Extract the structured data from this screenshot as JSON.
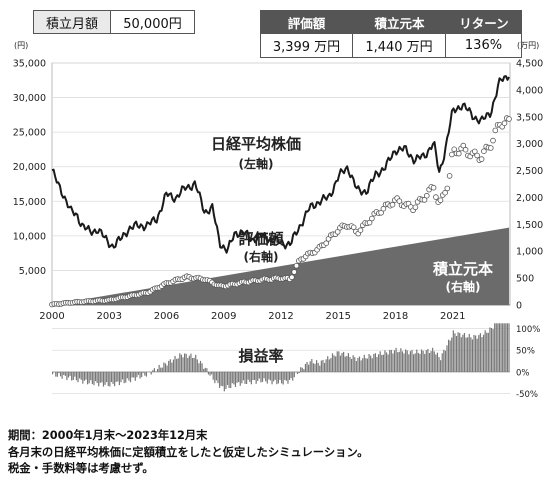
{
  "summary": {
    "monthly_label": "積立月額",
    "monthly_value": "50,000円",
    "headers": [
      "評価額",
      "積立元本",
      "リターン"
    ],
    "values": [
      "3,399 万円",
      "1,440 万円",
      "136%"
    ]
  },
  "notes": [
    "期間：2000年1月末〜2023年12月末",
    "各月末の日経平均株価に定額積立をしたと仮定したシミュレーション。",
    "税金・手数料等は考慮せず。"
  ],
  "chart_data": {
    "type": "line",
    "left_unit": "(円)",
    "right_unit": "(万円)",
    "left_ticks": [
      "35,000",
      "30,000",
      "25,000",
      "20,000",
      "15,000",
      "10,000",
      "5,000"
    ],
    "left_tick_values": [
      35000,
      30000,
      25000,
      20000,
      15000,
      10000,
      5000
    ],
    "right_ticks": [
      "4,500",
      "4,000",
      "3,500",
      "3,000",
      "2,500",
      "2,000",
      "1,500",
      "1,000",
      "500",
      "0"
    ],
    "right_tick_values": [
      4500,
      4000,
      3500,
      3000,
      2500,
      2000,
      1500,
      1000,
      500,
      0
    ],
    "x_ticks": [
      "2000",
      "2003",
      "2006",
      "2009",
      "2012",
      "2015",
      "2018",
      "2021"
    ],
    "x_tick_values": [
      2000,
      2003,
      2006,
      2009,
      2012,
      2015,
      2018,
      2021
    ],
    "left_ylim": [
      0,
      35000
    ],
    "right_ylim": [
      0,
      4500
    ],
    "xlim": [
      2000,
      2024
    ],
    "ror_ticks": [
      "100%",
      "50%",
      "0%",
      "-50%"
    ],
    "ror_tick_values": [
      100,
      50,
      0,
      -50
    ],
    "ror_ylim": [
      -60,
      115
    ],
    "series": [
      {
        "name": "日経平均株価",
        "sublabel": "(左軸)",
        "axis": "left",
        "x": [
          2000,
          2000.3,
          2000.6,
          2001,
          2001.3,
          2001.6,
          2002,
          2002.4,
          2002.8,
          2003.2,
          2003.6,
          2004,
          2004.5,
          2005,
          2005.5,
          2006,
          2006.5,
          2007,
          2007.5,
          2008,
          2008.4,
          2008.8,
          2009.2,
          2009.6,
          2010,
          2010.5,
          2011,
          2011.5,
          2012,
          2012.5,
          2013,
          2013.5,
          2014,
          2014.5,
          2015,
          2015.5,
          2016,
          2016.5,
          2017,
          2017.5,
          2018,
          2018.5,
          2019,
          2019.5,
          2020,
          2020.3,
          2020.6,
          2021,
          2021.5,
          2022,
          2022.5,
          2023,
          2023.5,
          2023.95
        ],
        "y": [
          19500,
          17500,
          16000,
          13500,
          13000,
          11500,
          10500,
          11000,
          9500,
          8500,
          9500,
          11000,
          11500,
          11500,
          12500,
          16000,
          15500,
          17000,
          17500,
          13500,
          14000,
          9000,
          7800,
          10500,
          10500,
          9500,
          10000,
          9500,
          9000,
          8800,
          11500,
          14000,
          15000,
          15500,
          18500,
          20000,
          16500,
          16500,
          19000,
          20000,
          22500,
          22500,
          21000,
          21500,
          23500,
          19000,
          22500,
          28000,
          29000,
          27500,
          26500,
          28000,
          32500,
          33400
        ]
      },
      {
        "name": "評価額",
        "sublabel": "(右軸)",
        "axis": "right",
        "x": [
          2000,
          2001,
          2002,
          2003,
          2004,
          2005,
          2006,
          2007,
          2008,
          2008.8,
          2009.3,
          2010,
          2011,
          2012,
          2012.5,
          2013,
          2014,
          2015,
          2015.5,
          2016,
          2017,
          2018,
          2018.9,
          2019.5,
          2020,
          2020.3,
          2020.8,
          2021,
          2021.5,
          2022,
          2022.5,
          2023,
          2023.5,
          2023.95
        ],
        "y": [
          10,
          45,
          70,
          90,
          160,
          230,
          400,
          520,
          480,
          350,
          370,
          420,
          470,
          500,
          480,
          850,
          1050,
          1400,
          1500,
          1350,
          1700,
          1950,
          1800,
          2000,
          2200,
          1850,
          2300,
          2850,
          2900,
          2800,
          2750,
          3000,
          3400,
          3399
        ]
      },
      {
        "name": "積立元本",
        "sublabel": "(右軸)",
        "axis": "right",
        "x": [
          2000,
          2023.95
        ],
        "y": [
          5,
          1440
        ]
      }
    ],
    "return_rate": {
      "name": "損益率",
      "x": [
        2000,
        2001,
        2002,
        2003,
        2004,
        2005,
        2006,
        2006.8,
        2007.5,
        2008,
        2008.5,
        2009,
        2009.5,
        2010,
        2011,
        2012,
        2012.5,
        2013,
        2013.5,
        2014,
        2015,
        2016,
        2017,
        2018,
        2019,
        2020,
        2020.3,
        2021,
        2022,
        2022.5,
        2023,
        2023.5,
        2023.95
      ],
      "y": [
        -5,
        -15,
        -25,
        -30,
        -20,
        -5,
        20,
        40,
        35,
        10,
        -20,
        -40,
        -30,
        -25,
        -20,
        -25,
        -20,
        5,
        25,
        20,
        45,
        30,
        40,
        50,
        45,
        50,
        30,
        90,
        80,
        85,
        100,
        130,
        136
      ]
    }
  }
}
